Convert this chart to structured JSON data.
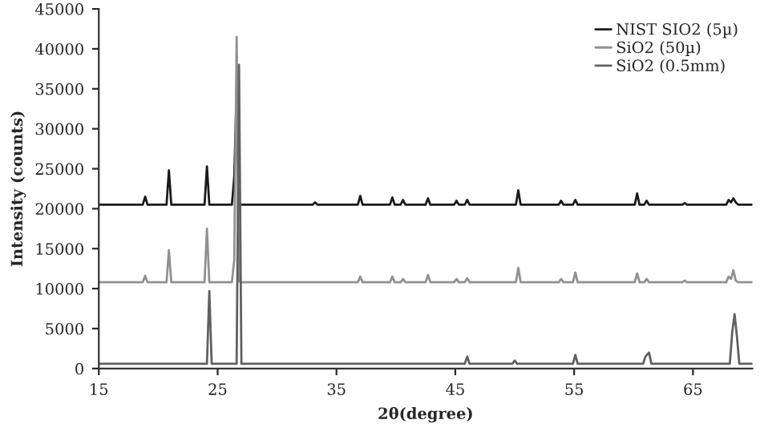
{
  "chart_data": {
    "type": "line",
    "xlabel": "2θ(degree)",
    "ylabel": "Intensity (counts)",
    "xlim": [
      15,
      70
    ],
    "xticks": [
      15,
      25,
      35,
      45,
      55,
      65
    ],
    "ylim": [
      0,
      45000
    ],
    "yticks": [
      0,
      5000,
      10000,
      15000,
      20000,
      25000,
      30000,
      35000,
      40000,
      45000
    ],
    "grid": false,
    "legend": "top right",
    "marker": "none",
    "line_style": "solid",
    "series": [
      {
        "name": "NIST SIO2 (5µ)",
        "color": "#1a1a1a",
        "x": [
          15,
          18.7,
          18.9,
          19.1,
          20.7,
          20.9,
          21.1,
          23.9,
          24.1,
          24.3,
          26.2,
          26.4,
          26.6,
          26.8,
          27.0,
          33.0,
          33.2,
          33.4,
          36.8,
          37.0,
          37.2,
          39.5,
          39.7,
          39.9,
          40.4,
          40.6,
          40.8,
          42.5,
          42.7,
          42.9,
          44.9,
          45.1,
          45.3,
          45.8,
          46.0,
          46.2,
          50.1,
          50.3,
          50.5,
          53.7,
          53.9,
          54.1,
          54.9,
          55.1,
          55.3,
          60.1,
          60.3,
          60.5,
          60.9,
          61.1,
          61.3,
          64.1,
          64.3,
          64.5,
          67.8,
          68.0,
          68.2,
          68.4,
          68.6,
          68.8,
          70
        ],
        "values": [
          20500,
          20500,
          21500,
          20500,
          20500,
          24800,
          20500,
          20500,
          25300,
          20500,
          20500,
          24000,
          35000,
          20600,
          20500,
          20500,
          20800,
          20500,
          20500,
          21600,
          20500,
          20500,
          21400,
          20500,
          20500,
          21100,
          20500,
          20500,
          21300,
          20500,
          20500,
          21000,
          20500,
          20500,
          21100,
          20500,
          20500,
          22300,
          20500,
          20500,
          21000,
          20500,
          20500,
          21100,
          20500,
          20500,
          21900,
          20500,
          20500,
          21000,
          20500,
          20500,
          20700,
          20500,
          20500,
          21100,
          20800,
          21300,
          20800,
          20500,
          20500
        ]
      },
      {
        "name": "SiO2 (50µ)",
        "color": "#909090",
        "x": [
          15,
          18.7,
          18.9,
          19.1,
          20.7,
          20.9,
          21.1,
          23.9,
          24.1,
          24.3,
          26.2,
          26.4,
          26.6,
          26.8,
          27.0,
          36.8,
          37.0,
          37.2,
          39.5,
          39.7,
          39.9,
          40.4,
          40.6,
          40.8,
          42.5,
          42.7,
          42.9,
          44.9,
          45.1,
          45.3,
          45.8,
          46.0,
          46.2,
          50.1,
          50.3,
          50.5,
          53.7,
          53.9,
          54.1,
          54.9,
          55.1,
          55.3,
          60.1,
          60.3,
          60.5,
          60.9,
          61.1,
          61.3,
          64.1,
          64.3,
          64.5,
          67.8,
          68.0,
          68.2,
          68.4,
          68.6,
          68.8,
          70
        ],
        "values": [
          10800,
          10800,
          11600,
          10800,
          10800,
          14800,
          10800,
          10800,
          17500,
          10800,
          10800,
          13600,
          41500,
          10900,
          10800,
          10800,
          11500,
          10800,
          10800,
          11500,
          10800,
          10800,
          11200,
          10800,
          10800,
          11700,
          10800,
          10800,
          11200,
          10800,
          10800,
          11300,
          10800,
          10800,
          12600,
          10800,
          10800,
          11200,
          10800,
          10800,
          12000,
          10800,
          10800,
          11900,
          10800,
          10800,
          11200,
          10800,
          10800,
          11000,
          10800,
          10800,
          11500,
          11200,
          12300,
          11000,
          10800,
          10800
        ]
      },
      {
        "name": "SiO2 (0.5mm)",
        "color": "#606060",
        "x": [
          15,
          24.1,
          24.3,
          24.5,
          26.6,
          26.8,
          27.0,
          45.8,
          46.0,
          46.2,
          49.8,
          50.0,
          50.2,
          54.9,
          55.1,
          55.3,
          60.8,
          61.0,
          61.3,
          61.5,
          68.1,
          68.3,
          68.5,
          68.7,
          68.9,
          70
        ],
        "values": [
          600,
          600,
          9700,
          600,
          600,
          38000,
          600,
          600,
          1500,
          600,
          600,
          1000,
          600,
          600,
          1700,
          600,
          600,
          1500,
          2000,
          600,
          600,
          4500,
          6800,
          4000,
          600,
          600
        ]
      }
    ]
  }
}
